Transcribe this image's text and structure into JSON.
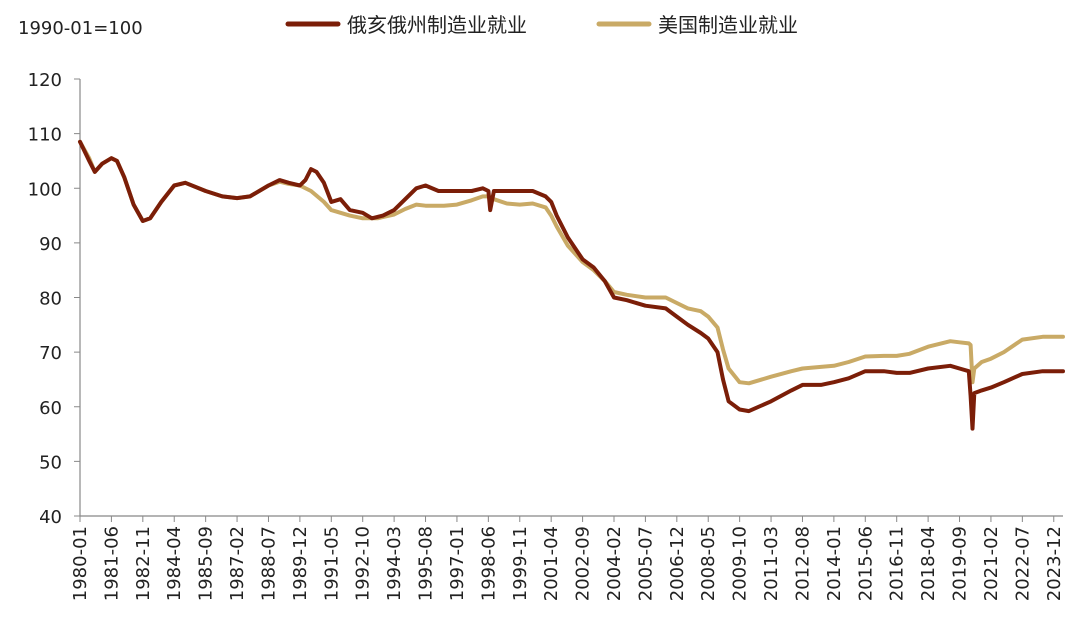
{
  "chart_data": {
    "type": "line",
    "unit_label": "1990-01=100",
    "ylim": [
      40,
      120
    ],
    "yticks": [
      40,
      50,
      60,
      70,
      80,
      90,
      100,
      110,
      120
    ],
    "xticks": [
      "1980-01",
      "1981-06",
      "1982-11",
      "1984-04",
      "1985-09",
      "1987-02",
      "1988-07",
      "1989-12",
      "1991-05",
      "1992-10",
      "1994-03",
      "1995-08",
      "1997-01",
      "1998-06",
      "1999-11",
      "2001-04",
      "2002-09",
      "2004-02",
      "2005-07",
      "2006-12",
      "2008-05",
      "2009-10",
      "2011-03",
      "2012-08",
      "2014-01",
      "2015-06",
      "2016-11",
      "2018-04",
      "2019-09",
      "2021-02",
      "2022-07",
      "2023-12"
    ],
    "x_range": [
      "1980-01",
      "2024-05"
    ],
    "grid": false,
    "legend_position": "top",
    "series": [
      {
        "name": "俄亥俄州制造业就业",
        "color": "#7b1e08",
        "points": [
          [
            "1980-01",
            108.5
          ],
          [
            "1980-06",
            105
          ],
          [
            "1980-09",
            103
          ],
          [
            "1981-01",
            104.5
          ],
          [
            "1981-06",
            105.5
          ],
          [
            "1981-09",
            105
          ],
          [
            "1982-01",
            102
          ],
          [
            "1982-06",
            97
          ],
          [
            "1982-11",
            94
          ],
          [
            "1983-03",
            94.5
          ],
          [
            "1983-09",
            97.5
          ],
          [
            "1984-04",
            100.5
          ],
          [
            "1984-10",
            101
          ],
          [
            "1985-09",
            99.5
          ],
          [
            "1986-06",
            98.5
          ],
          [
            "1987-02",
            98.2
          ],
          [
            "1987-09",
            98.5
          ],
          [
            "1988-07",
            100.5
          ],
          [
            "1989-01",
            101.5
          ],
          [
            "1989-06",
            101
          ],
          [
            "1989-12",
            100.5
          ],
          [
            "1990-03",
            101.5
          ],
          [
            "1990-06",
            103.5
          ],
          [
            "1990-09",
            103
          ],
          [
            "1991-01",
            101
          ],
          [
            "1991-05",
            97.5
          ],
          [
            "1991-10",
            98
          ],
          [
            "1992-03",
            96
          ],
          [
            "1992-10",
            95.5
          ],
          [
            "1993-03",
            94.5
          ],
          [
            "1993-09",
            95
          ],
          [
            "1994-03",
            96
          ],
          [
            "1994-09",
            98
          ],
          [
            "1995-03",
            100
          ],
          [
            "1995-08",
            100.5
          ],
          [
            "1996-03",
            99.5
          ],
          [
            "1997-01",
            99.5
          ],
          [
            "1997-09",
            99.5
          ],
          [
            "1998-03",
            100
          ],
          [
            "1998-06",
            99.5
          ],
          [
            "1998-07",
            96
          ],
          [
            "1998-09",
            99.5
          ],
          [
            "1999-04",
            99.5
          ],
          [
            "1999-11",
            99.5
          ],
          [
            "2000-06",
            99.5
          ],
          [
            "2001-01",
            98.5
          ],
          [
            "2001-04",
            97.5
          ],
          [
            "2001-07",
            95
          ],
          [
            "2002-01",
            91
          ],
          [
            "2002-09",
            87
          ],
          [
            "2003-03",
            85.5
          ],
          [
            "2003-09",
            83
          ],
          [
            "2004-02",
            80
          ],
          [
            "2004-09",
            79.5
          ],
          [
            "2005-07",
            78.5
          ],
          [
            "2006-06",
            78
          ],
          [
            "2006-12",
            76.5
          ],
          [
            "2007-06",
            75
          ],
          [
            "2008-01",
            73.5
          ],
          [
            "2008-05",
            72.5
          ],
          [
            "2008-10",
            70
          ],
          [
            "2009-01",
            65
          ],
          [
            "2009-04",
            61
          ],
          [
            "2009-10",
            59.5
          ],
          [
            "2010-03",
            59.2
          ],
          [
            "2011-03",
            61
          ],
          [
            "2012-02",
            63
          ],
          [
            "2012-08",
            64
          ],
          [
            "2013-06",
            64
          ],
          [
            "2014-01",
            64.5
          ],
          [
            "2014-09",
            65.2
          ],
          [
            "2015-06",
            66.5
          ],
          [
            "2016-04",
            66.5
          ],
          [
            "2016-11",
            66.2
          ],
          [
            "2017-06",
            66.2
          ],
          [
            "2018-04",
            67
          ],
          [
            "2019-04",
            67.5
          ],
          [
            "2019-09",
            67
          ],
          [
            "2020-02",
            66.5
          ],
          [
            "2020-03",
            62
          ],
          [
            "2020-04",
            56
          ],
          [
            "2020-05",
            62.5
          ],
          [
            "2020-09",
            63
          ],
          [
            "2021-02",
            63.5
          ],
          [
            "2021-09",
            64.5
          ],
          [
            "2022-07",
            66
          ],
          [
            "2023-06",
            66.5
          ],
          [
            "2023-12",
            66.5
          ],
          [
            "2024-05",
            66.5
          ]
        ]
      },
      {
        "name": "美国制造业就业",
        "color": "#c9aa66",
        "points": [
          [
            "1980-01",
            108.5
          ],
          [
            "1980-06",
            105.5
          ],
          [
            "1980-09",
            103
          ],
          [
            "1981-01",
            104.5
          ],
          [
            "1981-06",
            105.5
          ],
          [
            "1981-09",
            105
          ],
          [
            "1982-01",
            102
          ],
          [
            "1982-06",
            97
          ],
          [
            "1982-11",
            94
          ],
          [
            "1983-03",
            94.5
          ],
          [
            "1983-09",
            97.5
          ],
          [
            "1984-04",
            100.5
          ],
          [
            "1984-10",
            101
          ],
          [
            "1985-09",
            99.5
          ],
          [
            "1986-06",
            98.5
          ],
          [
            "1987-02",
            98.2
          ],
          [
            "1987-09",
            98.5
          ],
          [
            "1988-07",
            100.5
          ],
          [
            "1989-01",
            101.2
          ],
          [
            "1989-06",
            100.8
          ],
          [
            "1989-12",
            100.5
          ],
          [
            "1990-06",
            99.5
          ],
          [
            "1991-01",
            97.5
          ],
          [
            "1991-05",
            96
          ],
          [
            "1992-03",
            95
          ],
          [
            "1992-10",
            94.5
          ],
          [
            "1993-06",
            94.5
          ],
          [
            "1994-03",
            95.2
          ],
          [
            "1994-09",
            96.2
          ],
          [
            "1995-03",
            97
          ],
          [
            "1995-08",
            96.8
          ],
          [
            "1996-06",
            96.8
          ],
          [
            "1997-01",
            97
          ],
          [
            "1997-09",
            97.8
          ],
          [
            "1998-03",
            98.5
          ],
          [
            "1998-06",
            98.5
          ],
          [
            "1998-09",
            98
          ],
          [
            "1999-04",
            97.2
          ],
          [
            "1999-11",
            97
          ],
          [
            "2000-06",
            97.2
          ],
          [
            "2001-01",
            96.5
          ],
          [
            "2001-04",
            95
          ],
          [
            "2001-07",
            93
          ],
          [
            "2002-01",
            89.5
          ],
          [
            "2002-09",
            86.5
          ],
          [
            "2003-03",
            85
          ],
          [
            "2003-09",
            83
          ],
          [
            "2004-02",
            81
          ],
          [
            "2004-09",
            80.5
          ],
          [
            "2005-07",
            80
          ],
          [
            "2006-06",
            80
          ],
          [
            "2006-12",
            79
          ],
          [
            "2007-06",
            78
          ],
          [
            "2008-01",
            77.5
          ],
          [
            "2008-05",
            76.5
          ],
          [
            "2008-10",
            74.5
          ],
          [
            "2009-01",
            70.5
          ],
          [
            "2009-04",
            67
          ],
          [
            "2009-10",
            64.5
          ],
          [
            "2010-03",
            64.3
          ],
          [
            "2011-03",
            65.5
          ],
          [
            "2012-02",
            66.5
          ],
          [
            "2012-08",
            67
          ],
          [
            "2013-06",
            67.3
          ],
          [
            "2014-01",
            67.5
          ],
          [
            "2014-09",
            68.2
          ],
          [
            "2015-06",
            69.2
          ],
          [
            "2016-04",
            69.3
          ],
          [
            "2016-11",
            69.3
          ],
          [
            "2017-06",
            69.7
          ],
          [
            "2018-04",
            71
          ],
          [
            "2019-04",
            72
          ],
          [
            "2019-09",
            71.8
          ],
          [
            "2020-02",
            71.6
          ],
          [
            "2020-03",
            71.3
          ],
          [
            "2020-04",
            64.5
          ],
          [
            "2020-05",
            67
          ],
          [
            "2020-09",
            68.2
          ],
          [
            "2021-02",
            68.8
          ],
          [
            "2021-09",
            70
          ],
          [
            "2022-07",
            72.3
          ],
          [
            "2023-06",
            72.8
          ],
          [
            "2023-12",
            72.8
          ],
          [
            "2024-05",
            72.8
          ]
        ]
      }
    ]
  }
}
